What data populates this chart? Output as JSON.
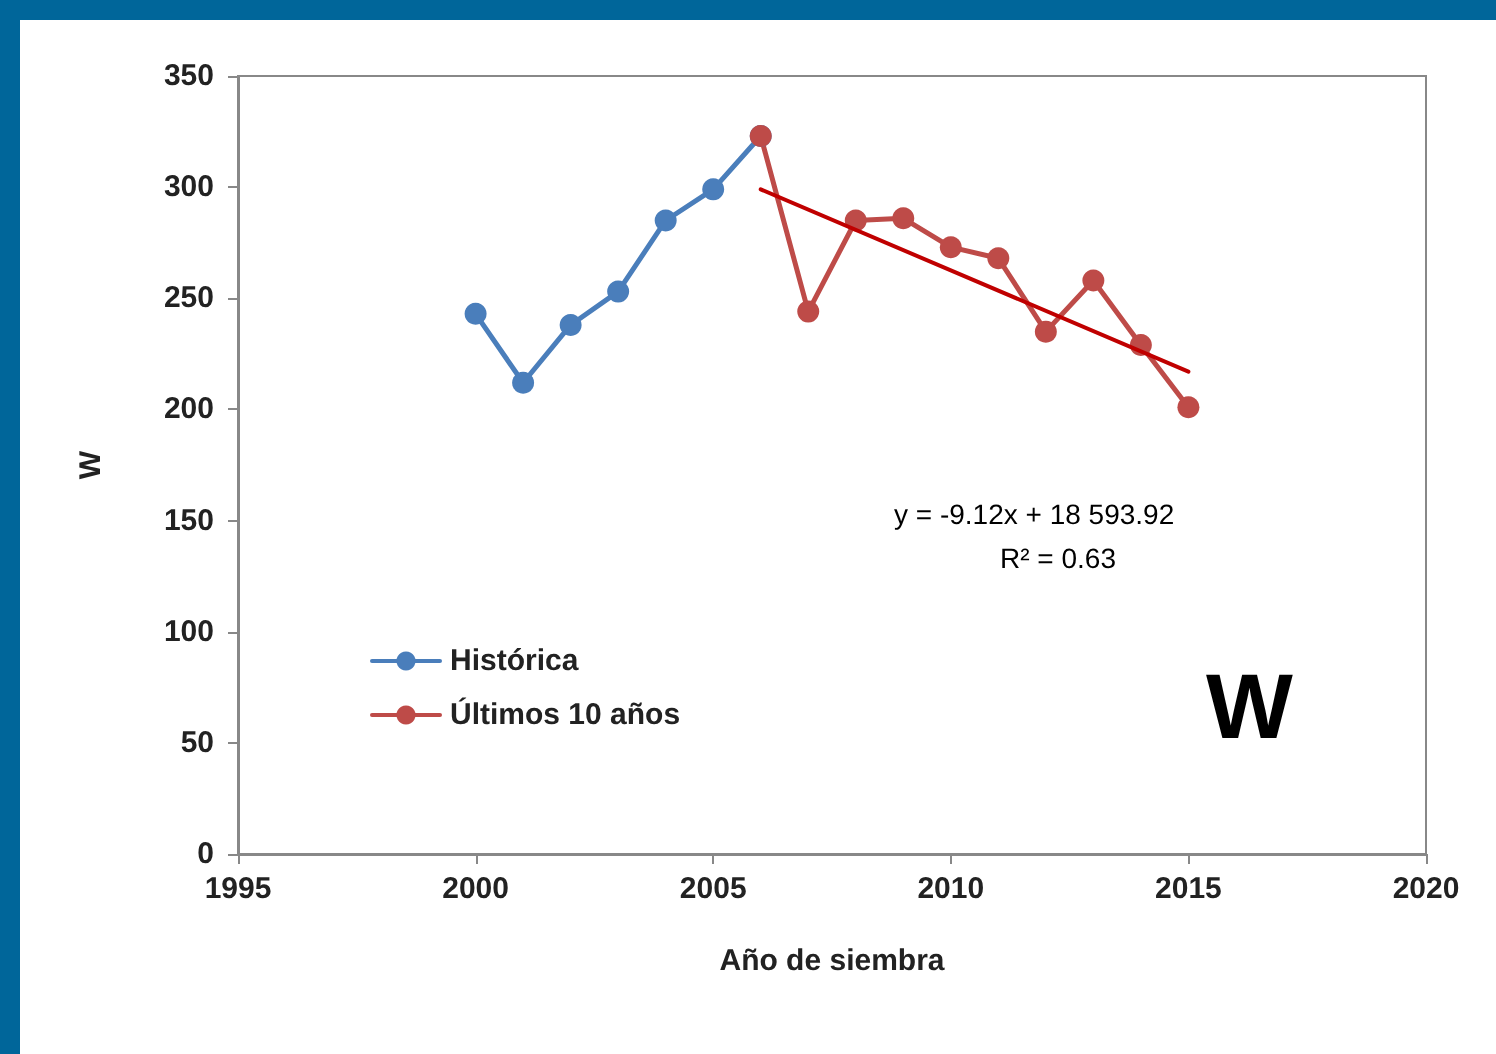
{
  "chart_data": {
    "type": "line",
    "xlabel": "Año de siembra",
    "ylabel": "W",
    "xlim": [
      1995,
      2020
    ],
    "xticks": [
      1995,
      2000,
      2005,
      2010,
      2015,
      2020
    ],
    "ylim": [
      0,
      350
    ],
    "yticks": [
      0,
      50,
      100,
      150,
      200,
      250,
      300,
      350
    ],
    "series": [
      {
        "name": "Histórica",
        "color": "#4a7ebb",
        "x": [
          2000,
          2001,
          2002,
          2003,
          2004,
          2005,
          2006
        ],
        "values": [
          243,
          212,
          238,
          253,
          285,
          299,
          323
        ]
      },
      {
        "name": "Últimos 10 años",
        "color": "#be4b48",
        "x": [
          2006,
          2007,
          2008,
          2009,
          2010,
          2011,
          2012,
          2013,
          2014,
          2015
        ],
        "values": [
          323,
          244,
          285,
          286,
          273,
          268,
          235,
          258,
          229,
          201
        ]
      },
      {
        "type": "line",
        "color": "#c00000",
        "marker": "none",
        "x": [
          2006,
          2015
        ],
        "values": [
          299,
          217
        ]
      }
    ],
    "annotations": [
      "y = -9.12x + 18 593.92",
      "R² = 0.63",
      "W"
    ],
    "marker": "circle",
    "line_style": "solid",
    "grid": false,
    "legend": "bottom left"
  }
}
